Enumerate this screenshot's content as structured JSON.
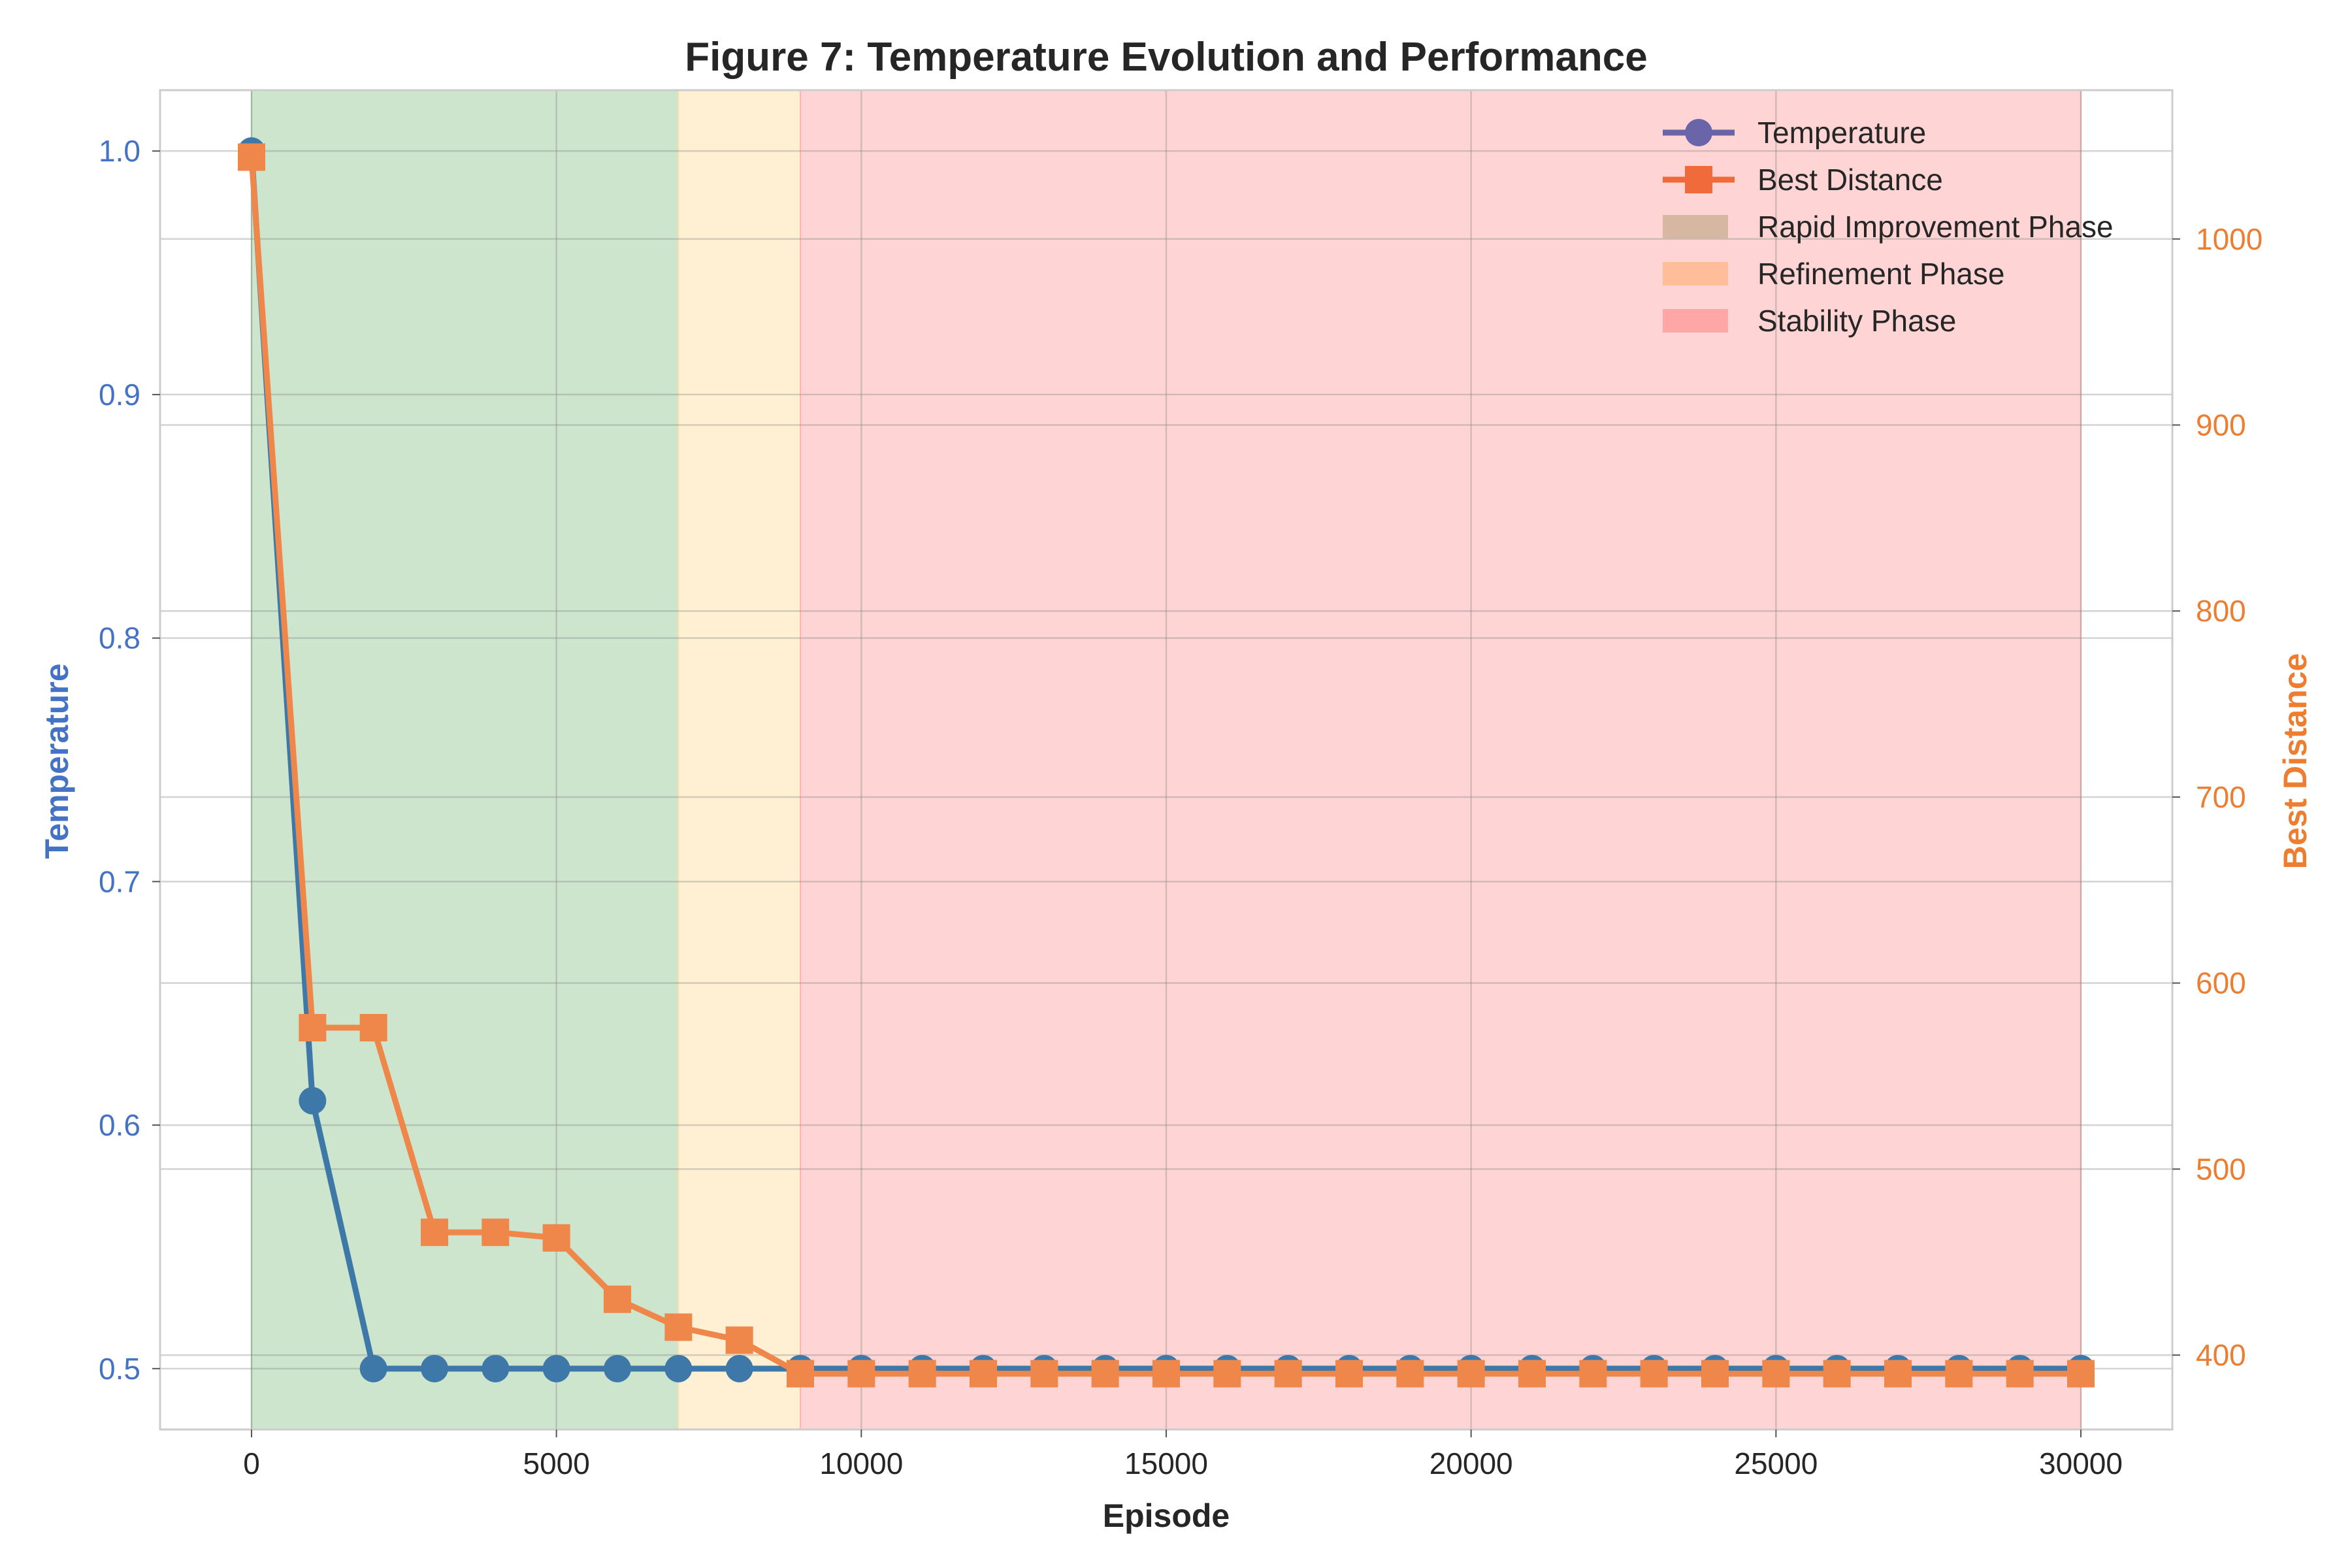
{
  "chart_data": {
    "type": "line",
    "title": "Figure 7: Temperature Evolution and Performance",
    "xlabel": "Episode",
    "ylabel_left": "Temperature",
    "ylabel_right": "Best Distance",
    "xlim": [
      -1500,
      31500
    ],
    "ylim_left": [
      0.475,
      1.025
    ],
    "ylim_right": [
      360,
      1080
    ],
    "x_ticks": [
      0,
      5000,
      10000,
      15000,
      20000,
      25000,
      30000
    ],
    "y_left_ticks": [
      0.5,
      0.6,
      0.7,
      0.8,
      0.9,
      1.0
    ],
    "y_right_ticks": [
      400,
      500,
      600,
      700,
      800,
      900,
      1000
    ],
    "grid": true,
    "legend_position": "top-right",
    "colors": {
      "temperature_line": "#3e78a8",
      "temperature_legend": "#6a65a8",
      "distance_line": "#f0874a",
      "distance_legend": "#f06a3c",
      "left_axis": "#4472c4",
      "right_axis": "#ed7d31"
    },
    "series": [
      {
        "name": "Temperature",
        "axis": "left",
        "marker": "circle",
        "x": [
          0,
          1000,
          2000,
          3000,
          4000,
          5000,
          6000,
          7000,
          8000,
          9000,
          10000,
          11000,
          12000,
          13000,
          14000,
          15000,
          16000,
          17000,
          18000,
          19000,
          20000,
          21000,
          22000,
          23000,
          24000,
          25000,
          26000,
          27000,
          28000,
          29000,
          30000
        ],
        "values": [
          1.0,
          0.61,
          0.5,
          0.5,
          0.5,
          0.5,
          0.5,
          0.5,
          0.5,
          0.5,
          0.5,
          0.5,
          0.5,
          0.5,
          0.5,
          0.5,
          0.5,
          0.5,
          0.5,
          0.5,
          0.5,
          0.5,
          0.5,
          0.5,
          0.5,
          0.5,
          0.5,
          0.5,
          0.5,
          0.5,
          0.5
        ]
      },
      {
        "name": "Best Distance",
        "axis": "right",
        "marker": "square",
        "x": [
          0,
          1000,
          2000,
          3000,
          4000,
          5000,
          6000,
          7000,
          8000,
          9000,
          10000,
          11000,
          12000,
          13000,
          14000,
          15000,
          16000,
          17000,
          18000,
          19000,
          20000,
          21000,
          22000,
          23000,
          24000,
          25000,
          26000,
          27000,
          28000,
          29000,
          30000
        ],
        "values": [
          1044,
          576,
          576,
          466,
          466,
          463,
          430,
          415,
          408,
          390,
          390,
          390,
          390,
          390,
          390,
          390,
          390,
          390,
          390,
          390,
          390,
          390,
          390,
          390,
          390,
          390,
          390,
          390,
          390,
          390,
          390
        ]
      }
    ],
    "phases": [
      {
        "name": "Rapid Improvement Phase",
        "start": 0,
        "end": 7000,
        "fill": "#a2d0a2",
        "legend_color": "#d6b7a1"
      },
      {
        "name": "Refinement Phase",
        "start": 7000,
        "end": 9000,
        "fill": "#ffe4b0",
        "legend_color": "#ffbd9a"
      },
      {
        "name": "Stability Phase",
        "start": 9000,
        "end": 30000,
        "fill": "#ffb0b0",
        "legend_color": "#ffa6a6"
      }
    ]
  }
}
